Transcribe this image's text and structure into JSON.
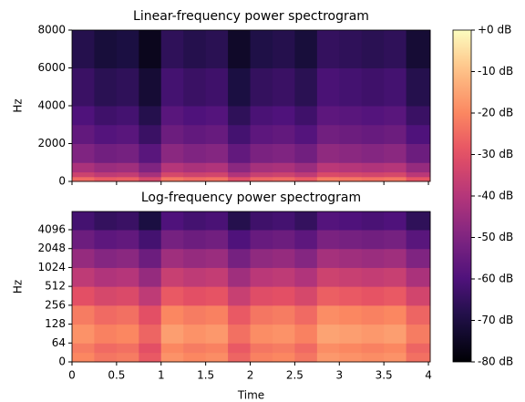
{
  "chart_data": [
    {
      "type": "heatmap",
      "title": "Linear-frequency power spectrogram",
      "ylabel": "Hz",
      "yscale": "linear",
      "colormap": "magma",
      "clim": [
        -80,
        0
      ],
      "xlim": [
        0,
        4.02
      ],
      "ylim": [
        0,
        8000
      ],
      "yticks": [
        0,
        2000,
        4000,
        6000,
        8000
      ],
      "x": [
        0,
        0.25,
        0.5,
        0.75,
        1,
        1.25,
        1.5,
        1.75,
        2,
        2.25,
        2.5,
        2.75,
        3,
        3.25,
        3.5,
        3.75,
        4.02
      ],
      "y": [
        0,
        250,
        500,
        1000,
        2000,
        3000,
        4000,
        6000,
        8000
      ],
      "values": [
        [
          -25,
          -28,
          -27,
          -33,
          -23,
          -25,
          -24,
          -31,
          -26,
          -25,
          -28,
          -22,
          -23,
          -24,
          -23,
          -29
        ],
        [
          -35,
          -38,
          -37,
          -43,
          -33,
          -35,
          -34,
          -41,
          -36,
          -35,
          -38,
          -32,
          -33,
          -34,
          -33,
          -39
        ],
        [
          -42,
          -45,
          -44,
          -50,
          -40,
          -42,
          -41,
          -48,
          -43,
          -42,
          -45,
          -39,
          -40,
          -41,
          -40,
          -46
        ],
        [
          -50,
          -53,
          -52,
          -58,
          -48,
          -50,
          -49,
          -56,
          -51,
          -50,
          -53,
          -47,
          -48,
          -49,
          -48,
          -54
        ],
        [
          -56,
          -59,
          -58,
          -64,
          -54,
          -56,
          -55,
          -62,
          -57,
          -56,
          -59,
          -53,
          -54,
          -55,
          -54,
          -60
        ],
        [
          -60,
          -63,
          -62,
          -68,
          -58,
          -60,
          -59,
          -66,
          -61,
          -60,
          -63,
          -57,
          -58,
          -59,
          -58,
          -64
        ],
        [
          -64,
          -67,
          -66,
          -72,
          -62,
          -64,
          -63,
          -70,
          -65,
          -64,
          -67,
          -61,
          -62,
          -63,
          -62,
          -68
        ],
        [
          -68,
          -71,
          -70,
          -76,
          -66,
          -68,
          -67,
          -74,
          -69,
          -68,
          -71,
          -65,
          -66,
          -67,
          -66,
          -72
        ]
      ]
    },
    {
      "type": "heatmap",
      "title": "Log-frequency power spectrogram",
      "ylabel": "Hz",
      "xlabel": "Time",
      "yscale": "symlog",
      "linthresh": 64,
      "colormap": "magma",
      "clim": [
        -80,
        0
      ],
      "xlim": [
        0,
        4.02
      ],
      "ylim": [
        0,
        8000
      ],
      "yticks": [
        0,
        64,
        128,
        256,
        512,
        1024,
        2048,
        4096
      ],
      "xticks": [
        0,
        0.5,
        1,
        1.5,
        2,
        2.5,
        3,
        3.5,
        4
      ],
      "x": [
        0,
        0.25,
        0.5,
        0.75,
        1,
        1.25,
        1.5,
        1.75,
        2,
        2.25,
        2.5,
        2.75,
        3,
        3.25,
        3.5,
        3.75,
        4.02
      ],
      "y": [
        0,
        32,
        64,
        128,
        256,
        512,
        1024,
        2048,
        4096,
        8000
      ],
      "values": [
        [
          -20,
          -23,
          -22,
          -28,
          -18,
          -20,
          -19,
          -26,
          -21,
          -20,
          -23,
          -17,
          -18,
          -19,
          -18,
          -24
        ],
        [
          -22,
          -25,
          -24,
          -30,
          -20,
          -22,
          -21,
          -28,
          -23,
          -22,
          -25,
          -19,
          -20,
          -21,
          -20,
          -26
        ],
        [
          -18,
          -21,
          -20,
          -26,
          -16,
          -18,
          -17,
          -24,
          -19,
          -18,
          -21,
          -15,
          -16,
          -17,
          -16,
          -22
        ],
        [
          -22,
          -25,
          -24,
          -30,
          -20,
          -22,
          -21,
          -28,
          -23,
          -22,
          -25,
          -19,
          -20,
          -21,
          -20,
          -26
        ],
        [
          -30,
          -33,
          -32,
          -38,
          -28,
          -30,
          -29,
          -36,
          -31,
          -30,
          -33,
          -27,
          -28,
          -29,
          -28,
          -34
        ],
        [
          -38,
          -41,
          -40,
          -46,
          -36,
          -38,
          -37,
          -44,
          -39,
          -38,
          -41,
          -35,
          -36,
          -37,
          -36,
          -42
        ],
        [
          -46,
          -49,
          -48,
          -54,
          -44,
          -46,
          -45,
          -52,
          -47,
          -46,
          -49,
          -43,
          -44,
          -45,
          -44,
          -50
        ],
        [
          -54,
          -57,
          -56,
          -62,
          -52,
          -54,
          -53,
          -60,
          -55,
          -54,
          -57,
          -51,
          -52,
          -53,
          -52,
          -58
        ],
        [
          -62,
          -65,
          -64,
          -70,
          -60,
          -62,
          -61,
          -68,
          -63,
          -62,
          -65,
          -59,
          -60,
          -61,
          -60,
          -66
        ]
      ]
    },
    {
      "type": "colorbar",
      "colormap": "magma",
      "ylim": [
        -80,
        0
      ],
      "yticks": [
        {
          "value": 0,
          "label": "+0 dB"
        },
        {
          "value": -10,
          "label": "-10 dB"
        },
        {
          "value": -20,
          "label": "-20 dB"
        },
        {
          "value": -30,
          "label": "-30 dB"
        },
        {
          "value": -40,
          "label": "-40 dB"
        },
        {
          "value": -50,
          "label": "-50 dB"
        },
        {
          "value": -60,
          "label": "-60 dB"
        },
        {
          "value": -70,
          "label": "-70 dB"
        },
        {
          "value": -80,
          "label": "-80 dB"
        }
      ]
    }
  ]
}
